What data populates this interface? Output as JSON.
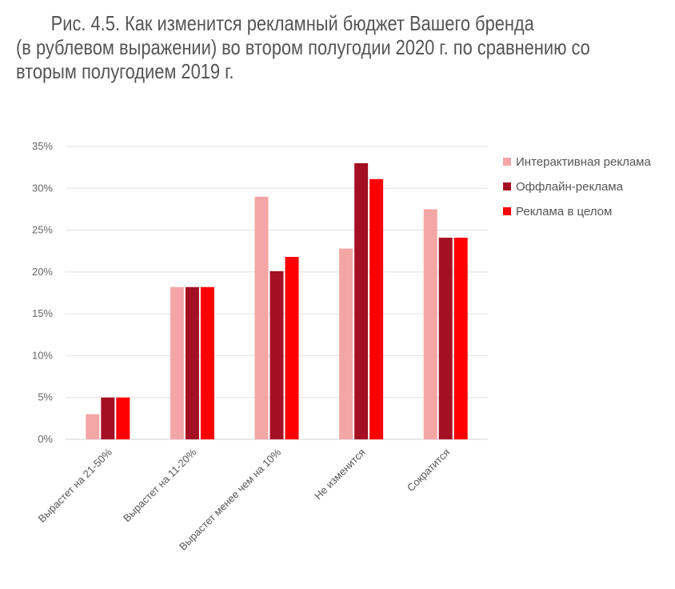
{
  "title": {
    "line1": "Рис. 4.5. Как изменится рекламный бюджет Вашего бренда",
    "line2": "(в рублевом выражении) во втором полугодии 2020 г. по сравнению со",
    "line3": "вторым полугодием 2019 г."
  },
  "chart_data": {
    "type": "bar",
    "title": "Рис. 4.5. Как изменится рекламный бюджет Вашего бренда (в рублевом выражении) во втором полугодии 2020 г. по сравнению со вторым полугодием 2019 г.",
    "xlabel": "",
    "ylabel": "",
    "ylim": [
      0,
      35
    ],
    "yticks": [
      "0%",
      "5%",
      "10%",
      "15%",
      "20%",
      "25%",
      "30%",
      "35%"
    ],
    "grid": true,
    "legend_position": "right",
    "categories": [
      "Вырастет на 21-50%",
      "Вырастет на 11-20%",
      "Вырастет менее чем на 10%",
      "Не изменится",
      "Сократится"
    ],
    "series": [
      {
        "name": "Интерактивная реклама",
        "color": "#f4a6a6",
        "values": [
          3,
          18.2,
          29,
          22.8,
          27.5
        ]
      },
      {
        "name": "Оффлайн-реклама",
        "color": "#a50f24",
        "values": [
          5,
          18.2,
          20.1,
          33,
          24.1
        ]
      },
      {
        "name": "Реклама в целом",
        "color": "#ff0000",
        "values": [
          5,
          18.2,
          21.8,
          31.1,
          24.1
        ]
      }
    ]
  }
}
